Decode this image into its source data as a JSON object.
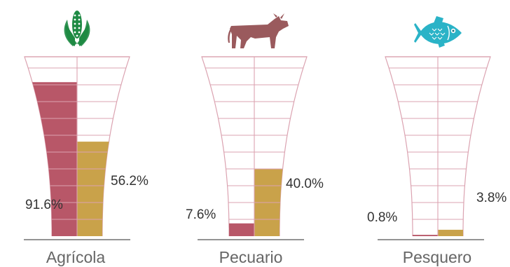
{
  "chart_data": {
    "type": "bar",
    "categories": [
      "Agrícola",
      "Pecuario",
      "Pesquero"
    ],
    "series": [
      {
        "values": [
          91.6,
          7.6,
          0.8
        ],
        "labels": [
          "91.6%",
          "7.6%",
          "0.8%"
        ]
      },
      {
        "values": [
          56.2,
          40.0,
          3.8
        ],
        "labels": [
          "56.2%",
          "40.0%",
          "3.8%"
        ]
      }
    ],
    "ylim": [
      0,
      100
    ],
    "icons": [
      "corn-icon",
      "cow-icon",
      "fish-icon"
    ]
  },
  "colors": {
    "series_1": "#b85768",
    "series_2": "#c9a24a",
    "outline": "#dba3b1",
    "corn_leaf": "#1e8a44",
    "cow": "#9a5a5d",
    "fish": "#2ab3c7",
    "baseline": "#555555",
    "text": "#333333",
    "category_text": "#666666"
  }
}
